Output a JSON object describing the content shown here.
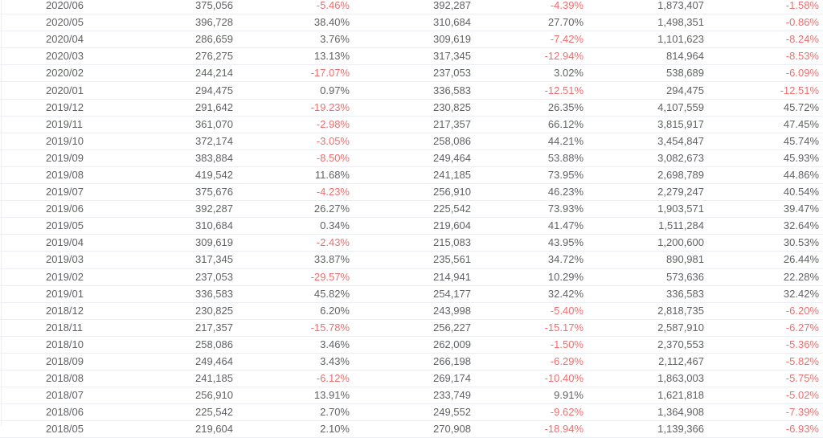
{
  "colors": {
    "text": "#606266",
    "negative": "#f56c6c",
    "border": "#ebeef5",
    "background": "#ffffff"
  },
  "table": {
    "columns": [
      "month",
      "value",
      "mom_pct",
      "prev_year_value",
      "yoy_pct",
      "cumulative_value",
      "cumulative_yoy_pct"
    ],
    "rows": [
      [
        "2020/06",
        "375,056",
        "-5.46%",
        "392,287",
        "-4.39%",
        "1,873,407",
        "-1.58%"
      ],
      [
        "2020/05",
        "396,728",
        "38.40%",
        "310,684",
        "27.70%",
        "1,498,351",
        "-0.86%"
      ],
      [
        "2020/04",
        "286,659",
        "3.76%",
        "309,619",
        "-7.42%",
        "1,101,623",
        "-8.24%"
      ],
      [
        "2020/03",
        "276,275",
        "13.13%",
        "317,345",
        "-12.94%",
        "814,964",
        "-8.53%"
      ],
      [
        "2020/02",
        "244,214",
        "-17.07%",
        "237,053",
        "3.02%",
        "538,689",
        "-6.09%"
      ],
      [
        "2020/01",
        "294,475",
        "0.97%",
        "336,583",
        "-12.51%",
        "294,475",
        "-12.51%"
      ],
      [
        "2019/12",
        "291,642",
        "-19.23%",
        "230,825",
        "26.35%",
        "4,107,559",
        "45.72%"
      ],
      [
        "2019/11",
        "361,070",
        "-2.98%",
        "217,357",
        "66.12%",
        "3,815,917",
        "47.45%"
      ],
      [
        "2019/10",
        "372,174",
        "-3.05%",
        "258,086",
        "44.21%",
        "3,454,847",
        "45.74%"
      ],
      [
        "2019/09",
        "383,884",
        "-8.50%",
        "249,464",
        "53.88%",
        "3,082,673",
        "45.93%"
      ],
      [
        "2019/08",
        "419,542",
        "11.68%",
        "241,185",
        "73.95%",
        "2,698,789",
        "44.86%"
      ],
      [
        "2019/07",
        "375,676",
        "-4.23%",
        "256,910",
        "46.23%",
        "2,279,247",
        "40.54%"
      ],
      [
        "2019/06",
        "392,287",
        "26.27%",
        "225,542",
        "73.93%",
        "1,903,571",
        "39.47%"
      ],
      [
        "2019/05",
        "310,684",
        "0.34%",
        "219,604",
        "41.47%",
        "1,511,284",
        "32.64%"
      ],
      [
        "2019/04",
        "309,619",
        "-2.43%",
        "215,083",
        "43.95%",
        "1,200,600",
        "30.53%"
      ],
      [
        "2019/03",
        "317,345",
        "33.87%",
        "235,561",
        "34.72%",
        "890,981",
        "26.44%"
      ],
      [
        "2019/02",
        "237,053",
        "-29.57%",
        "214,941",
        "10.29%",
        "573,636",
        "22.28%"
      ],
      [
        "2019/01",
        "336,583",
        "45.82%",
        "254,177",
        "32.42%",
        "336,583",
        "32.42%"
      ],
      [
        "2018/12",
        "230,825",
        "6.20%",
        "243,998",
        "-5.40%",
        "2,818,735",
        "-6.20%"
      ],
      [
        "2018/11",
        "217,357",
        "-15.78%",
        "256,227",
        "-15.17%",
        "2,587,910",
        "-6.27%"
      ],
      [
        "2018/10",
        "258,086",
        "3.46%",
        "262,009",
        "-1.50%",
        "2,370,553",
        "-5.36%"
      ],
      [
        "2018/09",
        "249,464",
        "3.43%",
        "266,198",
        "-6.29%",
        "2,112,467",
        "-5.82%"
      ],
      [
        "2018/08",
        "241,185",
        "-6.12%",
        "269,174",
        "-10.40%",
        "1,863,003",
        "-5.75%"
      ],
      [
        "2018/07",
        "256,910",
        "13.91%",
        "233,749",
        "9.91%",
        "1,621,818",
        "-5.02%"
      ],
      [
        "2018/06",
        "225,542",
        "2.70%",
        "249,552",
        "-9.62%",
        "1,364,908",
        "-7.39%"
      ],
      [
        "2018/05",
        "219,604",
        "2.10%",
        "270,908",
        "-18.94%",
        "1,139,366",
        "-6.93%"
      ]
    ]
  }
}
